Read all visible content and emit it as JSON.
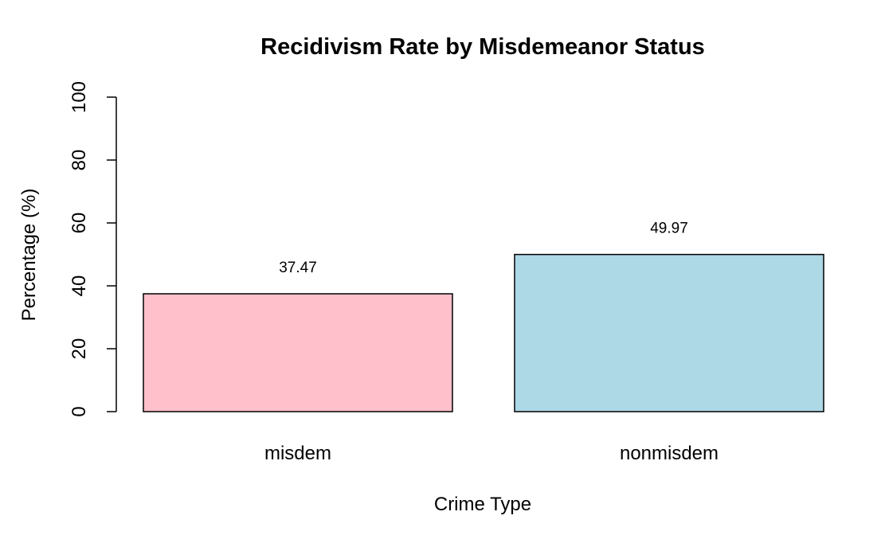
{
  "chart_data": {
    "type": "bar",
    "title": "Recidivism Rate by Misdemeanor Status",
    "xlabel": "Crime Type",
    "ylabel": "Percentage (%)",
    "categories": [
      "misdem",
      "nonmisdem"
    ],
    "values": [
      37.47,
      49.97
    ],
    "data_labels": [
      "37.47",
      "49.97"
    ],
    "colors": [
      "#ffc0cb",
      "#add8e6"
    ],
    "ylim": [
      0,
      100
    ],
    "yticks": [
      0,
      20,
      40,
      60,
      80,
      100
    ],
    "grid": false,
    "legend": "none"
  }
}
